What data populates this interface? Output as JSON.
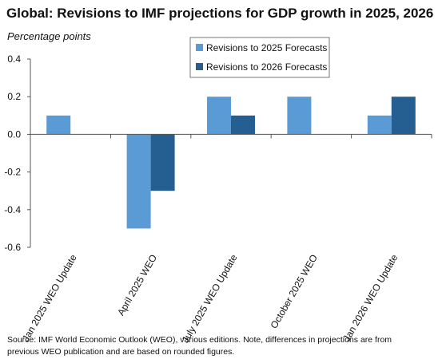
{
  "chart_data": {
    "type": "bar",
    "title": "Global: Revisions to IMF projections for GDP growth in 2025, 2026",
    "ylabel": "Percentage points",
    "xlabel": "",
    "categories": [
      "Jan 2025 WEO Update",
      "April 2025 WEO",
      "July 2025 WEO Update",
      "October 2025 WEO",
      "Jan 2026 WEO Update"
    ],
    "series": [
      {
        "name": "Revisions to 2025 Forecasts",
        "color": "#5b9bd5",
        "values": [
          0.1,
          -0.5,
          0.2,
          0.2,
          0.1
        ]
      },
      {
        "name": "Revisions to 2026 Forecasts",
        "color": "#255e91",
        "values": [
          null,
          -0.3,
          0.1,
          null,
          0.2
        ]
      }
    ],
    "ylim": [
      -0.6,
      0.4
    ],
    "yticks": [
      "0.4",
      "0.2",
      "0.0",
      "-0.2",
      "-0.4",
      "-0.6"
    ],
    "grid": false,
    "legend_position": "top-right"
  },
  "footnote": {
    "line1": "Source: IMF World Economic Outlook (WEO), various editions. Note, differences in projections are from",
    "line2": "previous WEO publication and are based on rounded figures."
  }
}
